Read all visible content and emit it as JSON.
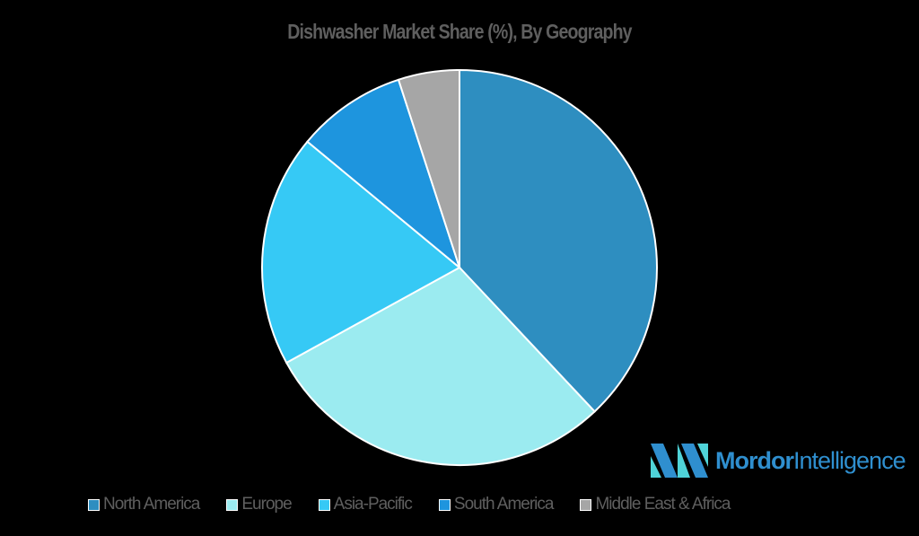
{
  "chart_data": {
    "type": "pie",
    "title": "Dishwasher Market Share (%), By Geography",
    "categories": [
      "North America",
      "Europe",
      "Asia-Pacific",
      "South America",
      "Middle East & Africa"
    ],
    "values": [
      38,
      29,
      19,
      9,
      5
    ],
    "colors": [
      "#2e8ec0",
      "#9bebf0",
      "#36c9f5",
      "#1e95de",
      "#a6a6a6"
    ],
    "legend_position": "bottom",
    "start_angle": "12 o'clock, clockwise"
  },
  "title": "Dishwasher Market Share (%), By Geography",
  "legend": [
    {
      "label": "North America",
      "color": "#2e8ec0"
    },
    {
      "label": "Europe",
      "color": "#9bebf0"
    },
    {
      "label": "Asia-Pacific",
      "color": "#36c9f5"
    },
    {
      "label": "South America",
      "color": "#1e95de"
    },
    {
      "label": "Middle East & Africa",
      "color": "#a6a6a6"
    }
  ],
  "logo": {
    "bold": "Mordor",
    "light": "Intelligence"
  }
}
